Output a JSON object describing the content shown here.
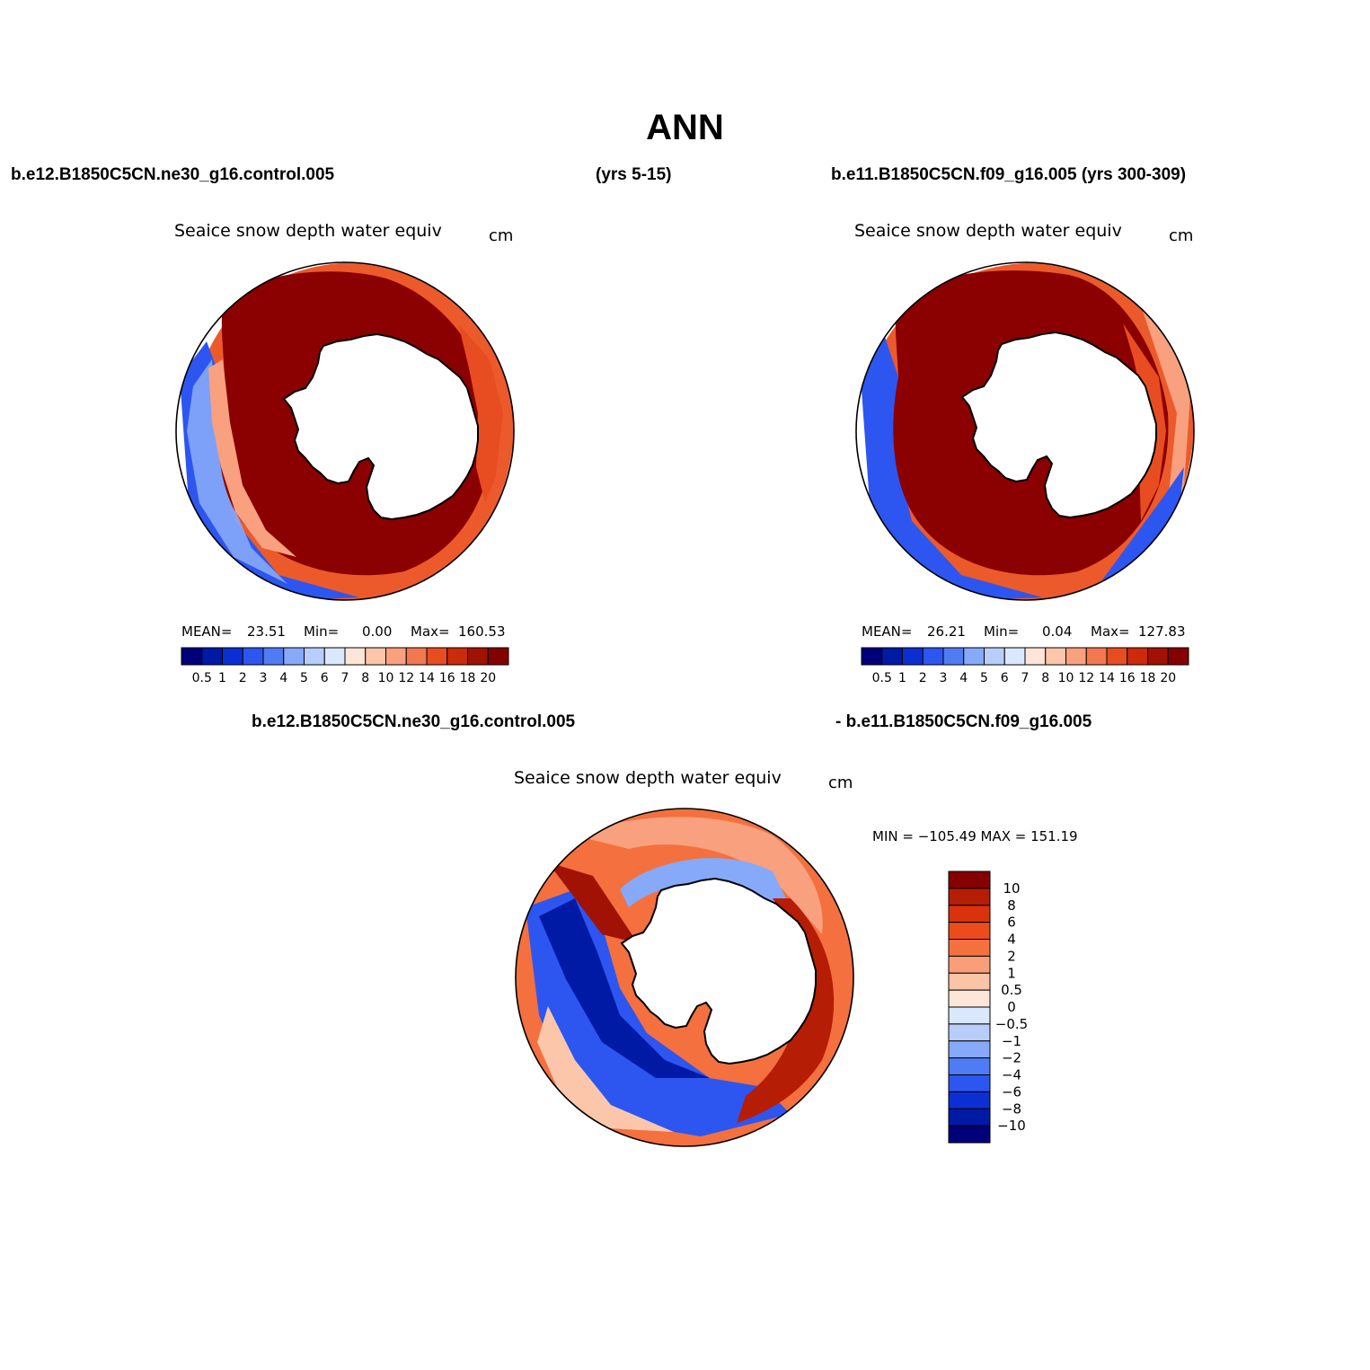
{
  "title": "ANN",
  "case1": "b.e12.B1850C5CN.ne30_g16.control.005",
  "years1": "(yrs 5-15)",
  "case2_with_years": "b.e11.B1850C5CN.f09_g16.005 (yrs 300-309)",
  "diff_case1": "b.e12.B1850C5CN.ne30_g16.control.005",
  "diff_case2": "- b.e11.B1850C5CN.f09_g16.005",
  "panels": [
    {
      "title": "Seaice snow depth water equiv",
      "units": "cm",
      "mean_label": "MEAN=",
      "mean": "23.51",
      "min_label": "Min=",
      "min": "0.00",
      "max_label": "Max=",
      "max": "160.53"
    },
    {
      "title": "Seaice snow depth water equiv",
      "units": "cm",
      "mean_label": "MEAN=",
      "mean": "26.21",
      "min_label": "Min=",
      "min": "0.04",
      "max_label": "Max=",
      "max": "127.83"
    }
  ],
  "diff_panel": {
    "title": "Seaice snow depth water equiv",
    "units": "cm",
    "minmax_text": "MIN = −105.49 MAX = 151.19"
  },
  "abs_colorbar": {
    "levels": [
      "0.5",
      "1",
      "2",
      "3",
      "4",
      "5",
      "6",
      "7",
      "8",
      "10",
      "12",
      "14",
      "16",
      "18",
      "20"
    ],
    "colors": [
      "#00007a",
      "#001aa6",
      "#0c2fd3",
      "#2d56f0",
      "#4f7cf5",
      "#86a9fa",
      "#b9cdfb",
      "#d9e8fc",
      "#fde6d8",
      "#fcc6ab",
      "#f9a07e",
      "#f3784f",
      "#e84d22",
      "#cc2a0a",
      "#a11204",
      "#850000"
    ]
  },
  "diff_colorbar": {
    "levels": [
      "10",
      "8",
      "6",
      "4",
      "2",
      "1",
      "0.5",
      "0",
      "−0.5",
      "−1",
      "−2",
      "−4",
      "−6",
      "−8",
      "−10"
    ],
    "colors": [
      "#850000",
      "#b51d05",
      "#d9320c",
      "#ec4b1c",
      "#f4703f",
      "#f99e78",
      "#fcc4a6",
      "#fde6d8",
      "#d9e8fc",
      "#b9cdfb",
      "#86a9fa",
      "#4f7cf5",
      "#2d56f0",
      "#0c2fd3",
      "#001aa6",
      "#00007a"
    ]
  },
  "colors": {
    "deep_red": "#8b0000",
    "mid_red": "#e0451c",
    "blue": "#1f45e0",
    "land": "#ffffff"
  }
}
